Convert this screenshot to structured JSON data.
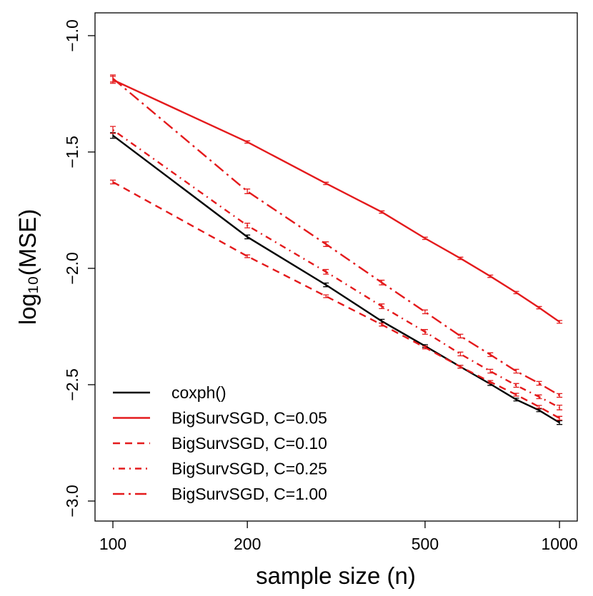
{
  "chart_data": {
    "type": "line",
    "xlabel": "sample size (n)",
    "ylabel": "log₁₀(MSE)",
    "xscale": "log",
    "x": [
      100,
      200,
      300,
      400,
      500,
      600,
      700,
      800,
      900,
      1000
    ],
    "xlim": [
      91.2,
      1096
    ],
    "ylim": [
      -3.086,
      -0.902
    ],
    "xticks": [
      100,
      200,
      500,
      1000
    ],
    "yticks": [
      {
        "value": -3.0,
        "label": "−3.0"
      },
      {
        "value": -2.5,
        "label": "−2.5"
      },
      {
        "value": -2.0,
        "label": "−2.0"
      },
      {
        "value": -1.5,
        "label": "−1.5"
      },
      {
        "value": -1.0,
        "label": "−1.0"
      }
    ],
    "legend": "bottomleft",
    "series": [
      {
        "name": "coxph()",
        "color": "#000000",
        "linestyle": "solid",
        "values": [
          -1.429,
          -1.865,
          -2.071,
          -2.227,
          -2.334,
          -2.423,
          -2.497,
          -2.564,
          -2.61,
          -2.663
        ],
        "errors": [
          0.012,
          0.008,
          0.008,
          0.008,
          0.006,
          0.006,
          0.006,
          0.006,
          0.006,
          0.008
        ]
      },
      {
        "name": "BigSurvSGD, C=0.05",
        "color": "#e41a1c",
        "linestyle": "solid",
        "values": [
          -1.19,
          -1.457,
          -1.635,
          -1.758,
          -1.871,
          -1.957,
          -2.034,
          -2.104,
          -2.169,
          -2.23
        ],
        "errors": [
          0.015,
          0.005,
          0.005,
          0.005,
          0.005,
          0.005,
          0.005,
          0.005,
          0.005,
          0.006
        ]
      },
      {
        "name": "BigSurvSGD, C=0.10",
        "color": "#e41a1c",
        "linestyle": "dashed",
        "values": [
          -1.629,
          -1.948,
          -2.12,
          -2.242,
          -2.34,
          -2.423,
          -2.488,
          -2.543,
          -2.595,
          -2.644
        ],
        "errors": [
          0.008,
          0.006,
          0.006,
          0.006,
          0.006,
          0.006,
          0.006,
          0.006,
          0.006,
          0.008
        ]
      },
      {
        "name": "BigSurvSGD, C=0.25",
        "color": "#e41a1c",
        "linestyle": "dotdash",
        "values": [
          -1.405,
          -1.816,
          -2.015,
          -2.163,
          -2.273,
          -2.368,
          -2.442,
          -2.503,
          -2.552,
          -2.598
        ],
        "errors": [
          0.015,
          0.01,
          0.01,
          0.01,
          0.01,
          0.008,
          0.008,
          0.008,
          0.008,
          0.01
        ]
      },
      {
        "name": "BigSurvSGD, C=1.00",
        "color": "#e41a1c",
        "linestyle": "longdashdot",
        "values": [
          -1.184,
          -1.669,
          -1.896,
          -2.061,
          -2.187,
          -2.291,
          -2.371,
          -2.442,
          -2.494,
          -2.546
        ],
        "errors": [
          0.015,
          0.01,
          0.01,
          0.01,
          0.008,
          0.008,
          0.008,
          0.008,
          0.008,
          0.008
        ]
      }
    ]
  }
}
